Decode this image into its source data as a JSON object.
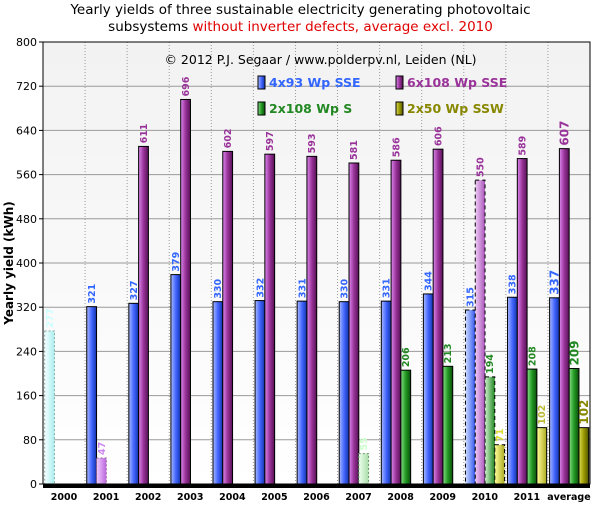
{
  "title": {
    "line1": "Yearly yields of three sustainable electricity generating photovoltaic",
    "line2_black": "subsystems ",
    "line2_red": "without inverter defects, average excl. 2010"
  },
  "copyright": "© 2012 P.J. Segaar / www.polderpv.nl, Leiden (NL)",
  "colors": {
    "s1": "#3366ff",
    "s2": "#993399",
    "s3": "#228822",
    "s4": "#888800",
    "s1_2000": "#ccffff",
    "s2_2001": "#cc88ee",
    "s3_2007": "#ccffcc",
    "red": "#e00000"
  },
  "chart_data": {
    "type": "bar",
    "ylabel": "Yearly yield (kWh)",
    "ylim": [
      0,
      800
    ],
    "yticks": [
      0,
      80,
      160,
      240,
      320,
      400,
      480,
      560,
      640,
      720,
      800
    ],
    "grid": true,
    "legend_position": "top-right",
    "categories": [
      "2000",
      "2001",
      "2002",
      "2003",
      "2004",
      "2005",
      "2006",
      "2007",
      "2008",
      "2009",
      "2010",
      "2011",
      "average"
    ],
    "series": [
      {
        "name": "4x93 Wp SSE",
        "values": [
          277,
          321,
          327,
          379,
          330,
          332,
          331,
          330,
          331,
          344,
          315,
          338,
          337
        ]
      },
      {
        "name": "6x108 Wp SSE",
        "values": [
          null,
          47,
          611,
          696,
          602,
          597,
          593,
          581,
          586,
          606,
          550,
          589,
          607
        ]
      },
      {
        "name": "2x108 Wp S",
        "values": [
          null,
          null,
          null,
          null,
          null,
          null,
          null,
          55,
          206,
          213,
          194,
          208,
          209
        ]
      },
      {
        "name": "2x50 Wp SSW",
        "values": [
          null,
          null,
          null,
          null,
          null,
          null,
          null,
          null,
          null,
          null,
          71,
          102,
          102
        ]
      }
    ]
  }
}
